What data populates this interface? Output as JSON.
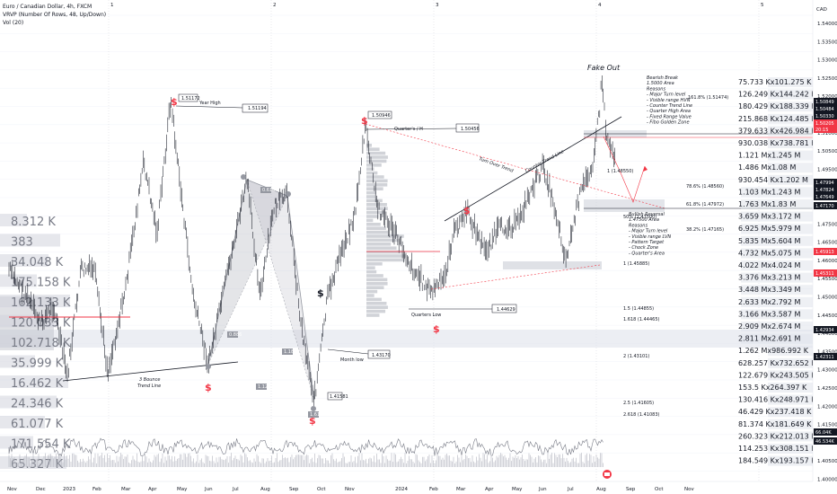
{
  "legend": {
    "title": "Euro / Canadian Dollar, 4h, FXCM",
    "indicator1": "VRVP (Number Of Rows, 48, Up/Down)",
    "indicator2": "Vol (20)"
  },
  "currency": "CAD",
  "price_axis": [
    "1.54000",
    "1.53500",
    "1.53000",
    "1.52500",
    "1.52000",
    "1.51500",
    "1.51000",
    "1.50500",
    "1.49500",
    "1.48500",
    "1.48000",
    "1.47500",
    "1.46500",
    "1.46000",
    "1.45500",
    "1.45000",
    "1.44500",
    "1.44000",
    "1.43500",
    "1.43000",
    "1.42500",
    "1.42000",
    "1.41500",
    "1.41000",
    "1.40500",
    "1.40000"
  ],
  "price_badges": [
    {
      "text": "1.50849",
      "color": "#131722"
    },
    {
      "text": "1.50484",
      "color": "#131722"
    },
    {
      "text": "1.50330",
      "color": "#131722"
    },
    {
      "text": "1.50205",
      "color": "#f23645"
    },
    {
      "text": "20:15",
      "color": "#f23645"
    },
    {
      "text": "1.47994",
      "color": "#131722"
    },
    {
      "text": "1.47824",
      "color": "#131722"
    },
    {
      "text": "1.47649",
      "color": "#131722"
    },
    {
      "text": "1.47170",
      "color": "#131722"
    },
    {
      "text": "1.45913",
      "color": "#f23645"
    },
    {
      "text": "1.45311",
      "color": "#f23645"
    },
    {
      "text": "1.42934",
      "color": "#131722"
    },
    {
      "text": "1.42311",
      "color": "#131722"
    },
    {
      "text": "66.04K",
      "color": "#131722"
    },
    {
      "text": "46.534K",
      "color": "#131722"
    }
  ],
  "time_axis": [
    "Nov",
    "Dec",
    "2023",
    "Feb",
    "Mar",
    "Apr",
    "May",
    "Jun",
    "Jul",
    "Aug",
    "Sep",
    "Oct",
    "Nov",
    "2024",
    "Feb",
    "Mar",
    "Apr",
    "May",
    "Jun",
    "Jul",
    "Aug",
    "Sep",
    "Oct",
    "Nov"
  ],
  "top_markers": [
    "1",
    "2",
    "3",
    "4",
    "5"
  ],
  "left_volume_profile": [
    "8.312 K",
    "383",
    "34.048 K",
    "175.158 K",
    "162.133 K",
    "120.033 K",
    "102.718 K",
    "35.999 K",
    "16.462 K",
    "24.346 K",
    "61.077 K",
    "171.554 K",
    "65.327 K"
  ],
  "right_volume_profile": [
    "75.733 K",
    "101.275 K",
    "126.249 K",
    "144.242 K",
    "180.429 K",
    "188.339 K",
    "215.868 K",
    "124.485 K",
    "379.633 K",
    "426.984 K",
    "930.038 K",
    "738.781 K",
    "1.121 M",
    "1.245 M",
    "1.486 M",
    "1.08 M",
    "930.454 K",
    "1.202 M",
    "1.103 M",
    "1.243 M",
    "1.763 M",
    "1.83 M",
    "3.659 M",
    "3.172 M",
    "6.925 M",
    "5.979 M",
    "5.835 M",
    "5.604 M",
    "4.732 M",
    "5.075 M",
    "4.022 M",
    "4.024 M",
    "3.376 M",
    "3.213 M",
    "3.448 M",
    "3.349 M",
    "2.633 M",
    "2.792 M",
    "3.166 M",
    "3.587 M",
    "2.909 M",
    "2.674 M",
    "2.811 M",
    "2.691 M",
    "1.262 M",
    "986.992 K",
    "628.257 K",
    "732.652 K",
    "122.679 K",
    "243.505 K",
    "153.5 K",
    "264.397 K",
    "130.416 K",
    "248.971 K",
    "46.429 K",
    "237.418 K",
    "81.374 K",
    "181.649 K",
    "260.323 K",
    "212.013 K",
    "114.253 K",
    "308.151 K",
    "184.549 K",
    "193.157 K"
  ],
  "labels": {
    "fake_out": "Fake Out",
    "year_high": "Year High",
    "quarter_high": "Quarter's / H",
    "quarters_low": "Quarters Low",
    "month_low": "Month low",
    "bounce_line1": "3 Bounce",
    "bounce_line2": "Trend Line",
    "turn_over": "Turn Over Trend",
    "counter_trend": "Counter Trend Line",
    "bearish": [
      "Bearish Break",
      "1.5000 Area",
      "Reasons",
      "- Major Turn level",
      "- Visible range HVN",
      "- Counter Trend Line",
      "- Quarter High Area",
      "- Fixed Range Value",
      "- Fibo Golden Zone"
    ],
    "bullish": [
      "Bullish Reversal",
      "1.47500 Area",
      "Reasons",
      "- Major Turn level",
      "- Visible range LVN",
      "- Pattern Target",
      "- Chock Zone",
      "- Quarter's Area"
    ]
  },
  "price_tags": {
    "year_high_tag": "1.51172",
    "year_high_box": "1.51194",
    "q_high_tag": "1.50946",
    "q_high_box": "1.50456",
    "q_low_box": "1.44629",
    "month_low_box": "1.43170",
    "low_tag": "1.41581"
  },
  "fib_labels": [
    "161.8% (1.51474)",
    "1 (1.48550)",
    "78.6% (1.48560)",
    "61.8% (1.47972)",
    "50% (1.47500)",
    "38.2% (1.47165)",
    "1 (1.45885)",
    "1.5 (1.44855)",
    "1.618 (1.44465)",
    "2 (1.43101)",
    "2.5 (1.41605)",
    "2.618 (1.41083)"
  ],
  "pattern_labels": [
    "0.618",
    "0.886",
    "1.127",
    "1.18",
    "1.618"
  ],
  "colors": {
    "bg": "#ffffff",
    "candle": "#131722",
    "red": "#f23645",
    "grid": "#f0f3fa",
    "pattern": "#9598a1"
  }
}
